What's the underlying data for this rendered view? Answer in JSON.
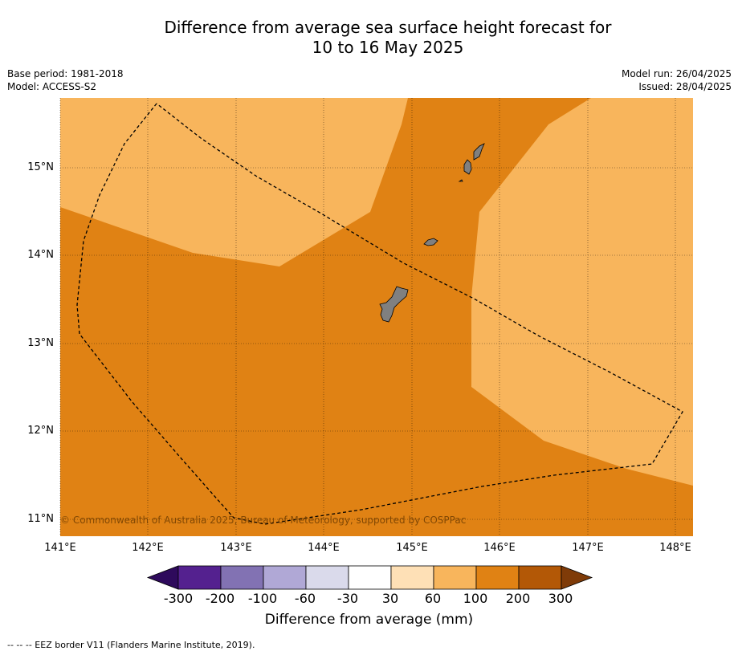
{
  "title_line1": "Difference from average sea surface height forecast for",
  "title_line2": "10 to 16 May 2025",
  "meta_left": {
    "base_period": "Base period: 1981-2018",
    "model": "Model: ACCESS-S2"
  },
  "meta_right": {
    "model_run": "Model run: 26/04/2025",
    "issued": "Issued: 28/04/2025"
  },
  "lat_labels": [
    "15°N",
    "14°N",
    "13°N",
    "12°N",
    "11°N"
  ],
  "lon_labels": [
    "141°E",
    "142°E",
    "143°E",
    "144°E",
    "145°E",
    "146°E",
    "147°E",
    "148°E"
  ],
  "copyright": "© Commonwealth of Australia 2025, Bureau of Meteorology, supported by COSPPac",
  "colorbar": {
    "ticks": [
      "-300",
      "-200",
      "-100",
      "-60",
      "-30",
      "30",
      "60",
      "100",
      "200",
      "300"
    ],
    "colors": [
      "#2e0a5c",
      "#54218f",
      "#8272b3",
      "#b0a8d6",
      "#dadaeb",
      "#ffffff",
      "#fee0b6",
      "#f8b55c",
      "#e08214",
      "#b35806",
      "#7f3b08"
    ],
    "label": "Difference from average (mm)"
  },
  "eez_note": "--  --  -- EEZ border V11 (Flanders Marine Institute, 2019)."
}
